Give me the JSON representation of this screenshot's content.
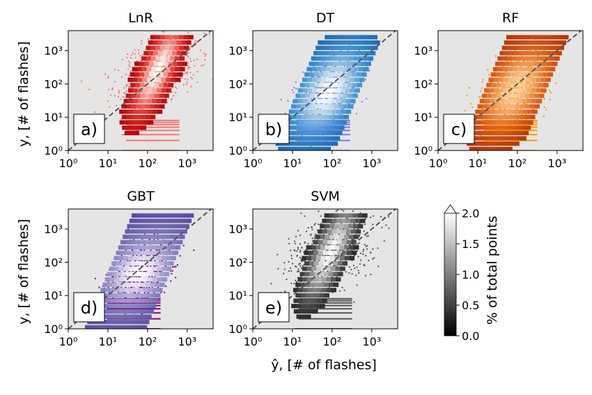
{
  "figure": {
    "shared_xlabel": "ŷ, [# of flashes]",
    "shared_ylabel": "y, [# of flashes]"
  },
  "colorbar": {
    "label": "% of total points",
    "ticks": [
      "0.0",
      "0.5",
      "1.0",
      "1.5",
      "2.0"
    ],
    "range": [
      0,
      2.0
    ],
    "extend": "max"
  },
  "chart_data": [
    {
      "type": "heatmap",
      "title": "LnR",
      "panel_label": "a)",
      "xscale": "log",
      "yscale": "log",
      "xlim": [
        1,
        4500
      ],
      "ylim": [
        1,
        4000
      ],
      "xticks": [
        "10⁰",
        "10¹",
        "10²",
        "10³"
      ],
      "yticks": [
        "10⁰",
        "10¹",
        "10²",
        "10³"
      ],
      "background": "#e5e5e5",
      "scatter_color": "#f87676",
      "cmap": [
        "#6b0000",
        "#b80f0f",
        "#e8403a",
        "#f5a39a",
        "#ffffff"
      ],
      "identity_line": true,
      "core": {
        "x_center": 180,
        "y_center": 250,
        "x_width": 3,
        "y_spread": 600
      }
    },
    {
      "type": "heatmap",
      "title": "DT",
      "panel_label": "b)",
      "xscale": "log",
      "yscale": "log",
      "xlim": [
        1,
        4500
      ],
      "ylim": [
        1,
        4000
      ],
      "xticks": [
        "10⁰",
        "10¹",
        "10²",
        "10³"
      ],
      "yticks": [
        "10⁰",
        "10¹",
        "10²",
        "10³"
      ],
      "background": "#e5e5e5",
      "scatter_color": "#7b7bf4",
      "cmap": [
        "#08306b",
        "#2171b5",
        "#4a98d6",
        "#9ecae1",
        "#ffffff"
      ],
      "identity_line": true,
      "core": {
        "x_center": 80,
        "y_center": 60,
        "x_width": 6,
        "y_spread": 300
      }
    },
    {
      "type": "heatmap",
      "title": "RF",
      "panel_label": "c)",
      "xscale": "log",
      "yscale": "log",
      "xlim": [
        1,
        4500
      ],
      "ylim": [
        1,
        4000
      ],
      "xticks": [
        "10⁰",
        "10¹",
        "10²",
        "10³"
      ],
      "yticks": [
        "10⁰",
        "10¹",
        "10²",
        "10³"
      ],
      "background": "#e5e5e5",
      "scatter_color": "#f5a000",
      "cmap": [
        "#7a1a00",
        "#b83a0a",
        "#e0601a",
        "#f29a50",
        "#ffd0a0"
      ],
      "identity_line": true,
      "core": {
        "x_center": 90,
        "y_center": 70,
        "x_width": 6,
        "y_spread": 300
      }
    },
    {
      "type": "heatmap",
      "title": "GBT",
      "panel_label": "d)",
      "xscale": "log",
      "yscale": "log",
      "xlim": [
        1,
        4500
      ],
      "ylim": [
        1,
        4000
      ],
      "xticks": [
        "10⁰",
        "10¹",
        "10²",
        "10³"
      ],
      "yticks": [
        "10⁰",
        "10¹",
        "10²",
        "10³"
      ],
      "background": "#e5e5e5",
      "scatter_color": "#800080",
      "cmap": [
        "#3b0f70",
        "#5e4fa2",
        "#7b78b8",
        "#a9a3d4",
        "#ffffff"
      ],
      "identity_line": true,
      "core": {
        "x_center": 60,
        "y_center": 50,
        "x_width": 8,
        "y_spread": 400
      }
    },
    {
      "type": "heatmap",
      "title": "SVM",
      "panel_label": "e)",
      "xscale": "log",
      "yscale": "log",
      "xlim": [
        1,
        4500
      ],
      "ylim": [
        1,
        4000
      ],
      "xticks": [
        "10⁰",
        "10¹",
        "10²",
        "10³"
      ],
      "yticks": [
        "10⁰",
        "10¹",
        "10²",
        "10³"
      ],
      "background": "#e5e5e5",
      "scatter_color": "#555555",
      "cmap": [
        "#000000",
        "#333333",
        "#777777",
        "#bbbbbb",
        "#ffffff"
      ],
      "identity_line": true,
      "core": {
        "x_center": 90,
        "y_center": 200,
        "x_width": 3,
        "y_spread": 600
      }
    }
  ]
}
